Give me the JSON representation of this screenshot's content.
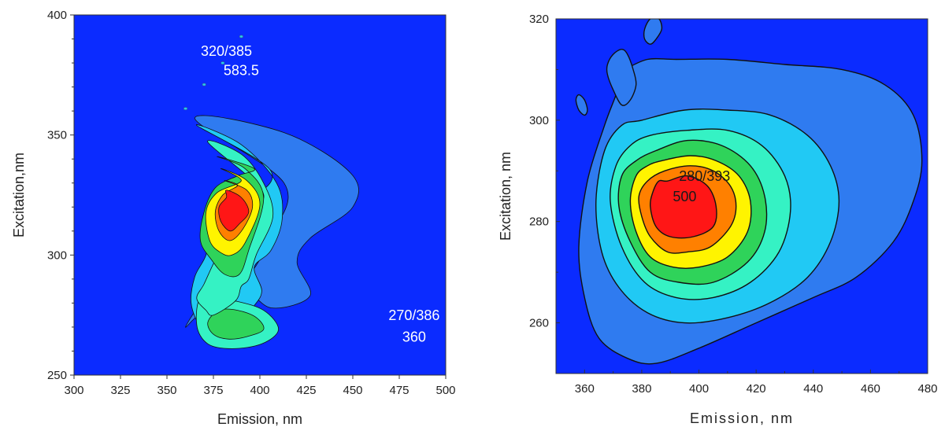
{
  "chart_data": [
    {
      "type": "contour",
      "xlabel": "Emission, nm",
      "ylabel": "Excitation,nm",
      "xlim": [
        300,
        500
      ],
      "ylim": [
        250,
        400
      ],
      "xticks": [
        "300",
        "325",
        "350",
        "375",
        "400",
        "425",
        "450",
        "475",
        "500"
      ],
      "yticks": [
        "250",
        "300",
        "350",
        "400"
      ],
      "background_color": "#0B2BFF",
      "peaks": [
        {
          "ex": 320,
          "em": 385,
          "intensity": 583.5,
          "label": "320/385",
          "value_label": "583.5"
        },
        {
          "ex": 270,
          "em": 386,
          "intensity": 360,
          "label": "270/386",
          "value_label": "360"
        }
      ],
      "annotations": [
        {
          "text": "320/385",
          "x": 382,
          "y": 383
        },
        {
          "text": "583.5",
          "x": 390,
          "y": 375
        },
        {
          "text": "270/386",
          "x": 483,
          "y": 273
        },
        {
          "text": "360",
          "x": 483,
          "y": 264
        }
      ],
      "levels": [
        {
          "color": "#2F7BF0",
          "emx": [
            365,
            413,
            449,
            450,
            427,
            420,
            427,
            406,
            390,
            378,
            367,
            360,
            368,
            380,
            393,
            406,
            413
          ],
          "exy": [
            357,
            351,
            334,
            320,
            307,
            297,
            283,
            278,
            287,
            279,
            275,
            270,
            280,
            292,
            291,
            308,
            330
          ]
        },
        {
          "color": "#21C9F4",
          "emx": [
            366,
            390,
            409,
            412,
            406,
            397,
            401,
            396,
            385,
            376,
            368,
            363,
            365,
            371,
            374,
            380,
            398,
            405
          ],
          "exy": [
            354,
            346,
            330,
            315,
            302,
            295,
            285,
            278,
            268,
            266,
            270,
            280,
            291,
            300,
            312,
            322,
            325,
            336
          ]
        },
        {
          "color": "#35F2C4",
          "emx": [
            372,
            390,
            402,
            407,
            398,
            394,
            390,
            387,
            375,
            371,
            366,
            370,
            376,
            382,
            395,
            401
          ],
          "exy": [
            347,
            342,
            330,
            316,
            300,
            290,
            287,
            281,
            275,
            277,
            282,
            288,
            298,
            306,
            318,
            327
          ]
        },
        {
          "color": "#2FD35A",
          "emx": [
            377,
            392,
            402,
            394,
            389,
            381,
            374,
            368,
            370,
            376,
            388,
            397
          ],
          "exy": [
            341,
            336,
            324,
            302,
            292,
            292,
            298,
            306,
            318,
            328,
            333,
            336
          ]
        },
        {
          "color": "#FFF400",
          "emx": [
            379,
            393,
            400,
            392,
            385,
            379,
            373,
            371,
            377,
            390
          ],
          "exy": [
            336,
            331,
            321,
            305,
            300,
            301,
            306,
            318,
            326,
            331
          ]
        },
        {
          "color": "#FF8000",
          "emx": [
            381,
            393,
            396,
            391,
            384,
            378,
            376,
            380,
            388
          ],
          "exy": [
            331,
            327,
            320,
            311,
            306,
            310,
            318,
            325,
            329
          ]
        },
        {
          "color": "#FF1616",
          "emx": [
            382,
            390,
            394,
            389,
            384,
            379,
            378,
            382
          ],
          "exy": [
            327,
            324,
            318,
            313,
            310,
            314,
            320,
            324
          ]
        }
      ],
      "lower_lobe_levels": [
        {
          "color": "#2FD35A",
          "emx": [
            378,
            388,
            398,
            402,
            393,
            383,
            375,
            372
          ],
          "exy": [
            277,
            277,
            274,
            269,
            266,
            265,
            267,
            272
          ]
        },
        {
          "color": "#35F2C4",
          "emx": [
            369,
            386,
            402,
            410,
            401,
            385,
            372,
            366
          ],
          "exy": [
            283,
            281,
            277,
            269,
            263,
            261,
            263,
            271
          ]
        }
      ],
      "specks_em": [
        360,
        370,
        380,
        390
      ],
      "specks_ex": [
        361,
        371,
        380,
        391
      ]
    },
    {
      "type": "contour",
      "xlabel": "Emission, nm",
      "ylabel": "Excitation, nm",
      "xlim": [
        350,
        480
      ],
      "ylim": [
        250,
        320
      ],
      "xticks": [
        "360",
        "380",
        "400",
        "420",
        "440",
        "460",
        "480"
      ],
      "yticks": [
        "260",
        "280",
        "300",
        "320"
      ],
      "background_color": "#0B2BFF",
      "peaks": [
        {
          "ex": 280,
          "em": 393,
          "intensity": 500,
          "label": "280/393",
          "value_label": "500"
        }
      ],
      "annotations": [
        {
          "text": "280/393",
          "x": 402,
          "y": 288
        },
        {
          "text": "500",
          "x": 395,
          "y": 284
        }
      ],
      "levels": [
        {
          "color": "#2F7BF0",
          "emx": [
            374,
            382,
            392,
            410,
            430,
            450,
            465,
            475,
            478,
            475,
            468,
            455,
            440,
            420,
            400,
            385,
            375,
            365,
            360,
            358,
            361,
            367,
            371,
            374
          ],
          "exy": [
            310,
            312,
            312,
            312,
            311,
            310,
            307,
            301,
            292,
            284,
            276,
            269,
            265,
            260,
            255,
            252,
            253,
            257,
            265,
            275,
            288,
            299,
            305,
            310
          ]
        },
        {
          "color": "#21C9F4",
          "emx": [
            380,
            395,
            410,
            425,
            438,
            446,
            449,
            446,
            438,
            425,
            410,
            395,
            382,
            372,
            366,
            364,
            367,
            373
          ],
          "exy": [
            300,
            302,
            302,
            301,
            297,
            291,
            284,
            276,
            269,
            264,
            261,
            260,
            262,
            267,
            274,
            284,
            294,
            299
          ]
        },
        {
          "color": "#35F2C4",
          "emx": [
            383,
            396,
            410,
            422,
            430,
            432,
            428,
            418,
            405,
            392,
            381,
            373,
            369,
            371,
            376
          ],
          "exy": [
            297,
            298,
            298,
            295,
            289,
            282,
            274,
            268,
            265,
            265,
            268,
            275,
            284,
            291,
            295
          ]
        },
        {
          "color": "#2FD35A",
          "emx": [
            385,
            396,
            408,
            418,
            423,
            423,
            417,
            405,
            393,
            383,
            376,
            372,
            373,
            378
          ],
          "exy": [
            294,
            296,
            295,
            291,
            285,
            278,
            272,
            268,
            268,
            270,
            276,
            283,
            289,
            292
          ]
        },
        {
          "color": "#FFF400",
          "emx": [
            387,
            397,
            406,
            414,
            418,
            417,
            410,
            400,
            391,
            383,
            378,
            376,
            378,
            382
          ],
          "exy": [
            292,
            293,
            292,
            289,
            284,
            278,
            273,
            271,
            271,
            273,
            278,
            284,
            289,
            291
          ]
        },
        {
          "color": "#FF8000",
          "emx": [
            388,
            397,
            405,
            411,
            413,
            411,
            404,
            396,
            389,
            383,
            380,
            379,
            382
          ],
          "exy": [
            290,
            291,
            290,
            287,
            283,
            279,
            275,
            274,
            274,
            277,
            281,
            285,
            288
          ]
        },
        {
          "color": "#FF1616",
          "emx": [
            389,
            396,
            403,
            406,
            405,
            398,
            390,
            385,
            383,
            384,
            386
          ],
          "exy": [
            288,
            289,
            287,
            283,
            279,
            277,
            277,
            279,
            283,
            286,
            288
          ]
        }
      ],
      "specks": [
        {
          "emx": [
            358,
            360,
            361,
            360,
            358,
            357
          ],
          "exy": [
            305,
            304,
            302,
            301,
            302,
            304
          ]
        },
        {
          "emx": [
            370,
            373,
            375,
            377,
            378,
            376,
            373,
            370,
            368,
            368
          ],
          "exy": [
            313,
            314,
            313,
            310,
            307,
            304,
            303,
            306,
            309,
            311
          ]
        },
        {
          "emx": [
            383,
            386,
            387,
            385,
            383,
            381,
            381
          ],
          "exy": [
            320,
            320,
            318,
            316,
            315,
            316,
            318
          ]
        }
      ]
    }
  ]
}
